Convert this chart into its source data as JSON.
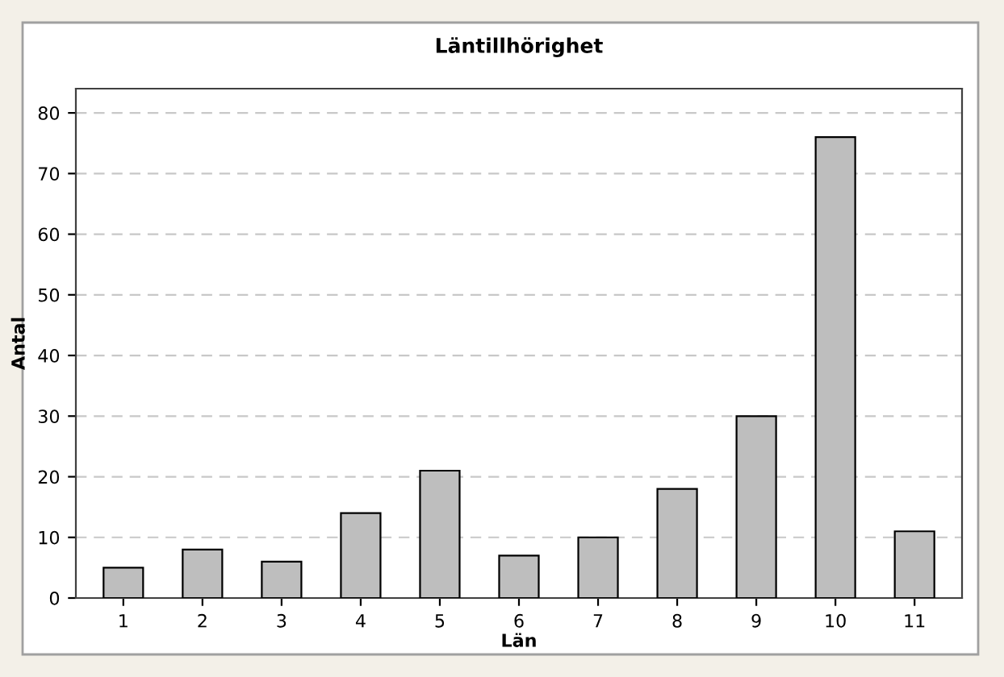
{
  "chart_data": {
    "type": "bar",
    "title": "Läntillhörighet",
    "xlabel": "Län",
    "ylabel": "Antal",
    "categories": [
      "1",
      "2",
      "3",
      "4",
      "5",
      "6",
      "7",
      "8",
      "9",
      "10",
      "11"
    ],
    "values": [
      5,
      8,
      6,
      14,
      21,
      7,
      10,
      18,
      30,
      76,
      11
    ],
    "color": "#bebebe",
    "ylim": [
      0,
      84
    ],
    "yticks": [
      0,
      10,
      20,
      30,
      40,
      50,
      60,
      70,
      80
    ],
    "grid": "y",
    "legend": false
  }
}
